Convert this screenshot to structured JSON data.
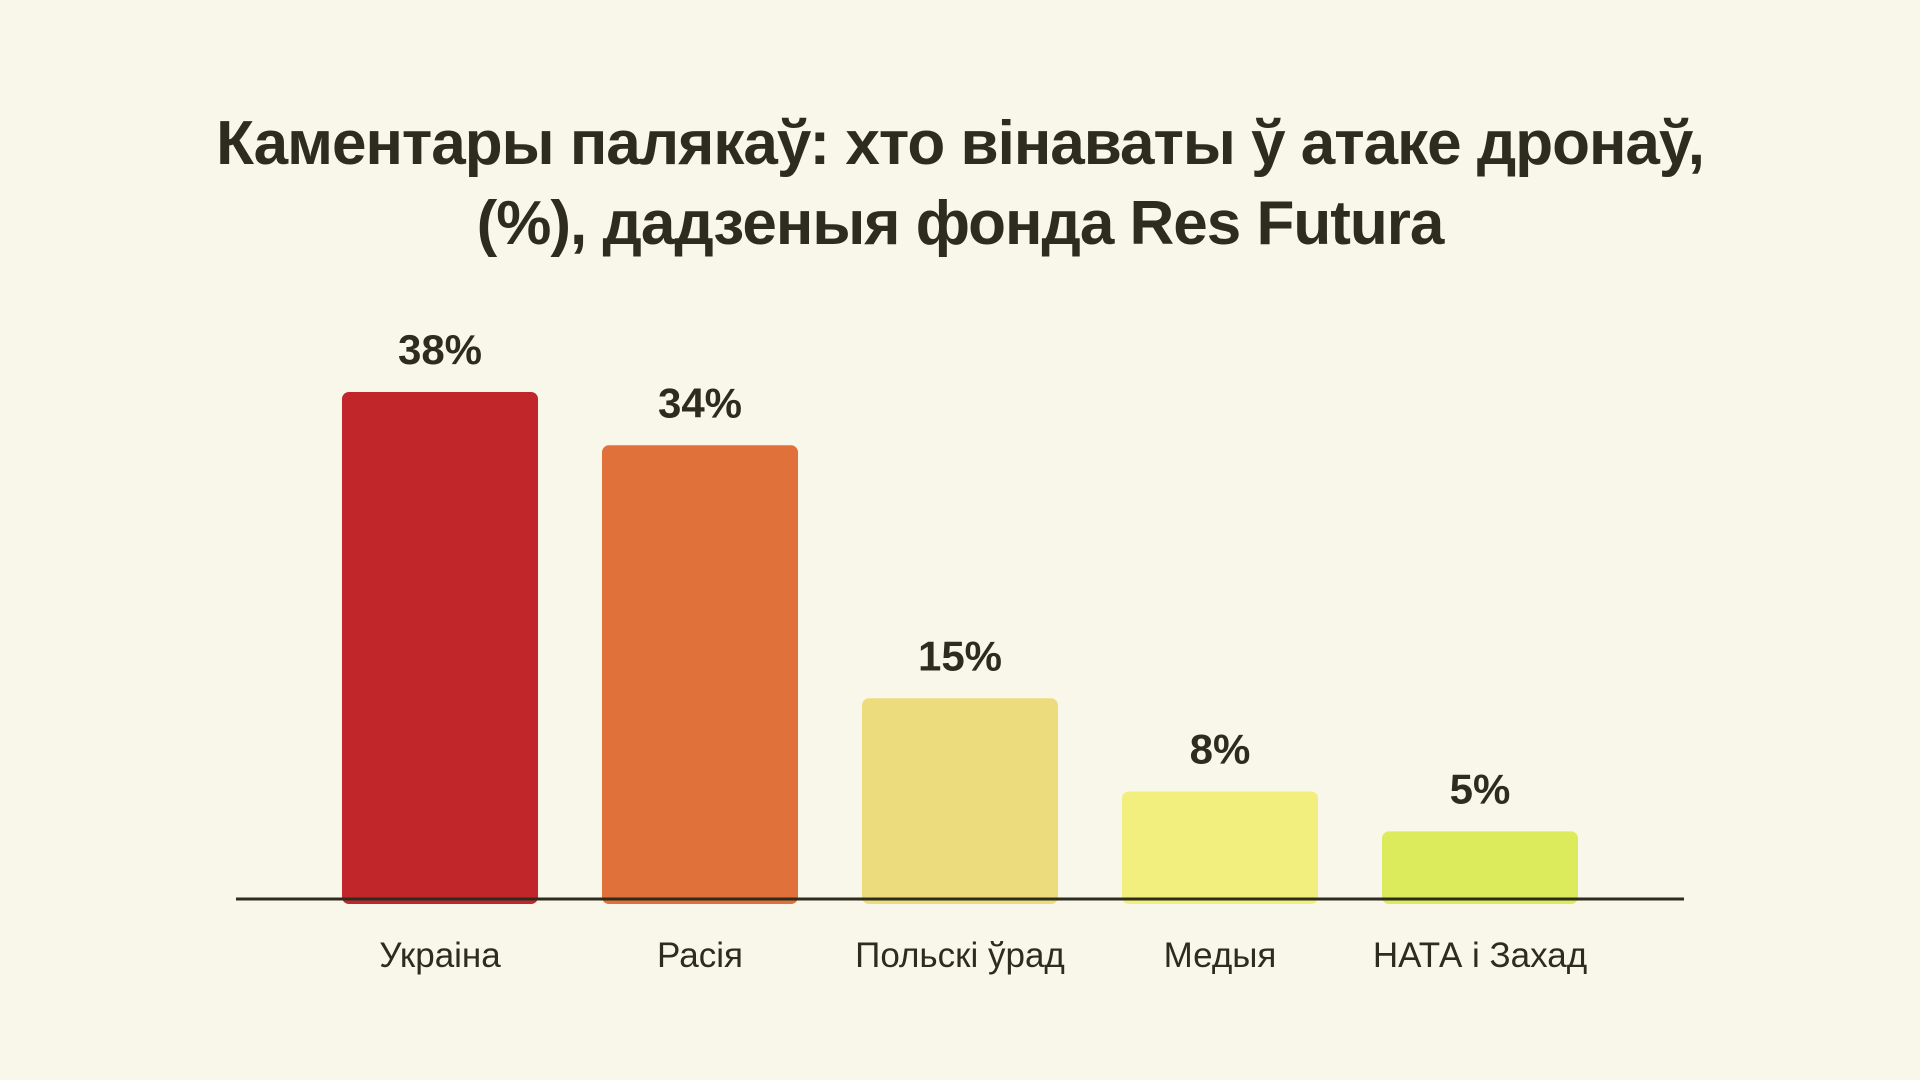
{
  "chart_data": {
    "type": "bar",
    "title_lines": [
      "Каментары палякаў: хто вінаваты ў атаке дронаў,",
      "(%), дадзеныя фонда Res Futura"
    ],
    "categories": [
      "Украіна",
      "Расія",
      "Польскі ўрад",
      "Медыя",
      "НАТА і Захад"
    ],
    "values": [
      38,
      34,
      15,
      8,
      5
    ],
    "value_labels": [
      "38%",
      "34%",
      "15%",
      "8%",
      "5%"
    ],
    "colors": [
      "#c1272a",
      "#e0713a",
      "#eddc7e",
      "#f2ef7e",
      "#dbeb5b"
    ],
    "ylim": [
      0,
      38
    ],
    "xlabel": "",
    "ylabel": "",
    "grid": false,
    "legend": "none"
  }
}
